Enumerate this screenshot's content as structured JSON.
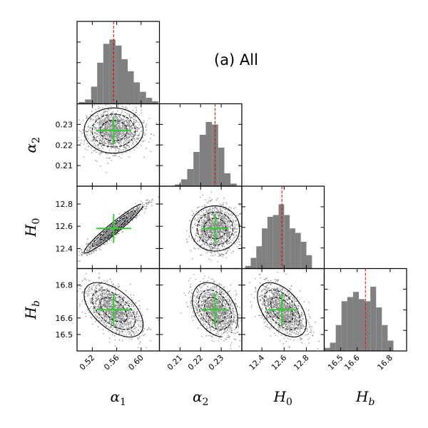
{
  "title": "(a) All",
  "chart_data": {
    "type": "scatter",
    "kind": "corner plot",
    "parameters": [
      {
        "key": "alpha1",
        "symbol": "α",
        "sub": "1",
        "range": [
          0.495,
          0.63
        ],
        "ticks": [
          "0.52",
          "0.56",
          "0.60"
        ],
        "tick_values": [
          0.52,
          0.56,
          0.6
        ],
        "best": 0.555,
        "sd": 0.022
      },
      {
        "key": "alpha2",
        "symbol": "α",
        "sub": "2",
        "range": [
          0.2,
          0.24
        ],
        "ticks": [
          "0.21",
          "0.22",
          "0.23"
        ],
        "tick_values": [
          0.21,
          0.22,
          0.23
        ],
        "best": 0.227,
        "sd": 0.005
      },
      {
        "key": "H0",
        "symbol": "H",
        "sub": "0",
        "range": [
          12.22,
          12.96
        ],
        "ticks": [
          "12.4",
          "12.6",
          "12.8"
        ],
        "tick_values": [
          12.4,
          12.6,
          12.8
        ],
        "best": 12.58,
        "sd": 0.1
      },
      {
        "key": "Hb",
        "symbol": "H",
        "sub": "b",
        "range": [
          16.4,
          16.9
        ],
        "ticks": [
          "16.5",
          "16.6",
          "16.8"
        ],
        "tick_values": [
          16.5,
          16.6,
          16.8
        ],
        "best": 16.65,
        "sd": 0.075
      }
    ],
    "histograms": [
      {
        "param": "alpha1",
        "bins": [
          0.498,
          0.508,
          0.518,
          0.528,
          0.538,
          0.548,
          0.558,
          0.568,
          0.578,
          0.588,
          0.598,
          0.608,
          0.618,
          0.628
        ],
        "counts": [
          2,
          5,
          20,
          48,
          70,
          75,
          68,
          52,
          38,
          25,
          14,
          7,
          3
        ]
      },
      {
        "param": "alpha2",
        "bins": [
          0.2075,
          0.2105,
          0.2135,
          0.2165,
          0.2195,
          0.2225,
          0.2255,
          0.2285,
          0.2315,
          0.2345,
          0.2375
        ],
        "counts": [
          2,
          8,
          20,
          40,
          60,
          75,
          72,
          45,
          15,
          3
        ]
      },
      {
        "param": "H0",
        "bins": [
          12.25,
          12.3,
          12.35,
          12.4,
          12.45,
          12.5,
          12.55,
          12.6,
          12.65,
          12.7,
          12.75,
          12.8,
          12.85
        ],
        "counts": [
          3,
          12,
          25,
          45,
          58,
          60,
          72,
          60,
          45,
          40,
          30,
          15
        ]
      },
      {
        "param": "Hb",
        "bins": [
          16.4,
          16.435,
          16.47,
          16.505,
          16.54,
          16.575,
          16.61,
          16.645,
          16.68,
          16.715,
          16.75,
          16.785,
          16.82
        ],
        "counts": [
          3,
          8,
          25,
          48,
          52,
          57,
          50,
          48,
          62,
          42,
          25,
          10
        ]
      }
    ],
    "pairs": [
      {
        "x": "alpha1",
        "y": "alpha2",
        "corr": 0.0
      },
      {
        "x": "alpha1",
        "y": "H0",
        "corr": 0.96
      },
      {
        "x": "alpha2",
        "y": "H0",
        "corr": 0.0
      },
      {
        "x": "alpha1",
        "y": "Hb",
        "corr": -0.55
      },
      {
        "x": "alpha2",
        "y": "Hb",
        "corr": -0.35
      },
      {
        "x": "H0",
        "y": "Hb",
        "corr": -0.5
      }
    ],
    "best_fit_marker": "green cross",
    "histogram_reference_line": "red dashed"
  }
}
